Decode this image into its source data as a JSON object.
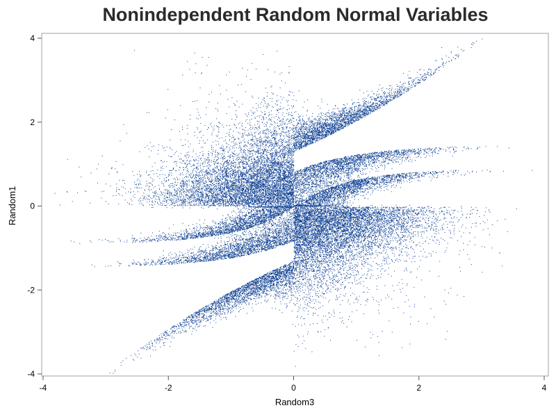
{
  "chart_data": {
    "type": "scatter",
    "title": "Nonindependent Random Normal Variables",
    "xlabel": "Random3",
    "ylabel": "Random1",
    "xlim": [
      -4,
      4
    ],
    "ylim": [
      -4,
      4
    ],
    "xticks": [
      -4,
      -2,
      0,
      2,
      4
    ],
    "yticks": [
      -4,
      -2,
      0,
      2,
      4
    ],
    "grid": false,
    "marker_color": "#0a3d91",
    "n_points_approx": 30000,
    "series": [
      {
        "values_description_omitted": true,
        "structure": [
          {
            "region": "upper-left diffuse cloud",
            "x_range": [
              -3.5,
              0
            ],
            "y_range": [
              -0.2,
              3.0
            ]
          },
          {
            "region": "lower-right diffuse cloud",
            "x_range": [
              0,
              3.5
            ],
            "y_range": [
              -3.0,
              0.2
            ]
          },
          {
            "region": "right upper band",
            "x_range": [
              0,
              3.1
            ],
            "y_range": [
              1.3,
              3.3
            ]
          },
          {
            "region": "right middle band",
            "x_range": [
              0,
              2.9
            ],
            "y_range": [
              0.8,
              1.47
            ]
          },
          {
            "region": "right lower band",
            "x_range": [
              0,
              3.2
            ],
            "y_range": [
              0,
              0.9
            ]
          },
          {
            "region": "left lower band",
            "x_range": [
              -3.2,
              0
            ],
            "y_range": [
              -3.3,
              -1.3
            ]
          },
          {
            "region": "left middle band",
            "x_range": [
              -2.9,
              0
            ],
            "y_range": [
              -1.47,
              -0.8
            ]
          },
          {
            "region": "left upper band",
            "x_range": [
              -3.2,
              0
            ],
            "y_range": [
              -0.9,
              0
            ]
          }
        ]
      }
    ]
  }
}
